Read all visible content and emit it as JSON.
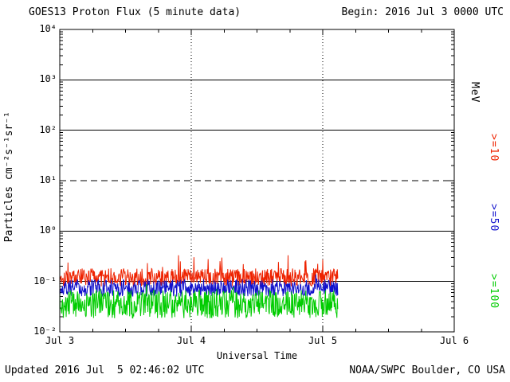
{
  "header": {
    "title": "GOES13 Proton Flux (5 minute data)",
    "begin": "Begin: 2016 Jul 3 0000 UTC"
  },
  "footer": {
    "updated": "Updated 2016 Jul  5 02:46:02 UTC",
    "source": "NOAA/SWPC Boulder, CO USA"
  },
  "chart_data": {
    "type": "line",
    "title": "GOES13 Proton Flux (5 minute data)",
    "xlabel": "Universal Time",
    "ylabel": "Particles cm⁻²s⁻¹sr⁻¹",
    "right_axis_label": "MeV",
    "x_range_days": [
      0,
      3
    ],
    "ylim_log10": [
      -2,
      4
    ],
    "x_ticks": [
      {
        "label": "Jul 3",
        "day": 0
      },
      {
        "label": "Jul 4",
        "day": 1
      },
      {
        "label": "Jul 5",
        "day": 2
      },
      {
        "label": "Jul 6",
        "day": 3
      }
    ],
    "y_ticks": [
      {
        "label": "10⁴",
        "log": 4
      },
      {
        "label": "10³",
        "log": 3
      },
      {
        "label": "10²",
        "log": 2
      },
      {
        "label": "10¹",
        "log": 1
      },
      {
        "label": "10⁰",
        "log": 0
      },
      {
        "label": "10⁻¹",
        "log": -1
      },
      {
        "label": "10⁻²",
        "log": -2
      }
    ],
    "solid_gridlines_log10": [
      3,
      2,
      0,
      -1
    ],
    "dashed_gridlines_log10": [
      1
    ],
    "vertical_dotted_gridlines_days": [
      1,
      2
    ],
    "grid": true,
    "legend_position": "right-rotated",
    "data_start_day": 0,
    "data_end_day": 2.115,
    "points_per_day": 288,
    "series": [
      {
        "name": ">=10",
        "color": "#ee2200",
        "log10_mean": -0.92,
        "log10_jitter": 0.18,
        "spike_prob": 0.05,
        "spike_log10_max": 0.45,
        "seed": 101,
        "approx_flux_range": [
          0.07,
          0.45
        ]
      },
      {
        "name": ">=50",
        "color": "#1111cc",
        "log10_mean": -1.13,
        "log10_jitter": 0.17,
        "spike_prob": 0.02,
        "spike_log10_max": 0.15,
        "seed": 202,
        "approx_flux_range": [
          0.04,
          0.15
        ]
      },
      {
        "name": ">=100",
        "color": "#00cc00",
        "log10_mean": -1.45,
        "log10_jitter": 0.28,
        "spike_prob": 0.03,
        "spike_log10_max": 0.15,
        "seed": 303,
        "approx_flux_range": [
          0.015,
          0.09
        ]
      }
    ]
  }
}
